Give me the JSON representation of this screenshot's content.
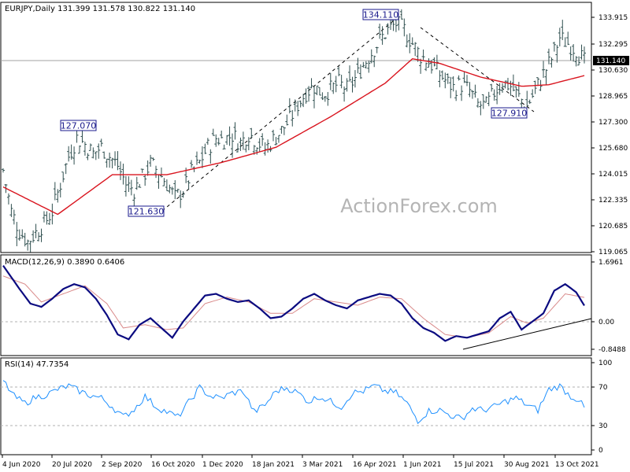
{
  "chart_data": [
    {
      "type": "candlestick",
      "title": "EURJPY,Daily  131.399 131.578 130.822 131.140",
      "watermark": "ActionForex.com",
      "x_tick_labels": [
        "4 Jun 2020",
        "20 Jul 2020",
        "2 Sep 2020",
        "16 Oct 2020",
        "1 Dec 2020",
        "18 Jan 2021",
        "3 Mar 2021",
        "16 Apr 2021",
        "1 Jun 2021",
        "15 Jul 2021",
        "30 Aug 2021",
        "13 Oct 2021"
      ],
      "y_tick_labels": [
        "133.915",
        "132.295",
        "130.630",
        "128.965",
        "127.300",
        "125.680",
        "124.015",
        "122.335",
        "120.685",
        "119.065"
      ],
      "ylim": [
        118.9,
        135.3
      ],
      "last_price": "131.140",
      "annotations": [
        {
          "label": "127.070",
          "value": 127.07
        },
        {
          "label": "121.630",
          "value": 121.63
        },
        {
          "label": "134.110",
          "value": 134.11
        },
        {
          "label": "127.910",
          "value": 127.91
        }
      ],
      "price_path": [
        {
          "x": 0,
          "y": 124.3
        },
        {
          "x": 3,
          "y": 121.6
        },
        {
          "x": 6,
          "y": 120.3
        },
        {
          "x": 9,
          "y": 119.6
        },
        {
          "x": 12,
          "y": 120.2
        },
        {
          "x": 15,
          "y": 120.8
        },
        {
          "x": 18,
          "y": 121.6
        },
        {
          "x": 21,
          "y": 123.4
        },
        {
          "x": 24,
          "y": 125.2
        },
        {
          "x": 27,
          "y": 126.4
        },
        {
          "x": 30,
          "y": 126.0
        },
        {
          "x": 33,
          "y": 125.4
        },
        {
          "x": 36,
          "y": 125.8
        },
        {
          "x": 39,
          "y": 125.2
        },
        {
          "x": 42,
          "y": 124.6
        },
        {
          "x": 45,
          "y": 123.4
        },
        {
          "x": 48,
          "y": 123.0
        },
        {
          "x": 51,
          "y": 123.8
        },
        {
          "x": 54,
          "y": 124.7
        },
        {
          "x": 57,
          "y": 124.2
        },
        {
          "x": 60,
          "y": 123.4
        },
        {
          "x": 63,
          "y": 122.5
        },
        {
          "x": 66,
          "y": 123.0
        },
        {
          "x": 69,
          "y": 124.1
        },
        {
          "x": 72,
          "y": 124.8
        },
        {
          "x": 75,
          "y": 125.8
        },
        {
          "x": 78,
          "y": 126.4
        },
        {
          "x": 81,
          "y": 126.3
        },
        {
          "x": 84,
          "y": 126.6
        },
        {
          "x": 87,
          "y": 126.1
        },
        {
          "x": 90,
          "y": 126.7
        },
        {
          "x": 93,
          "y": 126.2
        },
        {
          "x": 96,
          "y": 125.7
        },
        {
          "x": 99,
          "y": 126.3
        },
        {
          "x": 102,
          "y": 126.9
        },
        {
          "x": 105,
          "y": 127.6
        },
        {
          "x": 108,
          "y": 128.6
        },
        {
          "x": 111,
          "y": 129.4
        },
        {
          "x": 114,
          "y": 129.8
        },
        {
          "x": 117,
          "y": 129.3
        },
        {
          "x": 120,
          "y": 129.6
        },
        {
          "x": 123,
          "y": 130.0
        },
        {
          "x": 126,
          "y": 129.6
        },
        {
          "x": 129,
          "y": 130.3
        },
        {
          "x": 132,
          "y": 131.2
        },
        {
          "x": 135,
          "y": 132.0
        },
        {
          "x": 138,
          "y": 132.8
        },
        {
          "x": 141,
          "y": 133.5
        },
        {
          "x": 144,
          "y": 133.9
        },
        {
          "x": 147,
          "y": 133.5
        },
        {
          "x": 150,
          "y": 132.6
        },
        {
          "x": 153,
          "y": 131.8
        },
        {
          "x": 156,
          "y": 131.4
        },
        {
          "x": 159,
          "y": 130.8
        },
        {
          "x": 162,
          "y": 130.2
        },
        {
          "x": 165,
          "y": 129.7
        },
        {
          "x": 168,
          "y": 129.9
        },
        {
          "x": 171,
          "y": 129.5
        },
        {
          "x": 174,
          "y": 128.6
        },
        {
          "x": 177,
          "y": 128.5
        },
        {
          "x": 180,
          "y": 129.4
        },
        {
          "x": 183,
          "y": 130.1
        },
        {
          "x": 186,
          "y": 129.8
        },
        {
          "x": 189,
          "y": 129.1
        },
        {
          "x": 192,
          "y": 128.5
        },
        {
          "x": 195,
          "y": 129.5
        },
        {
          "x": 198,
          "y": 130.6
        },
        {
          "x": 201,
          "y": 131.6
        },
        {
          "x": 204,
          "y": 133.0
        },
        {
          "x": 207,
          "y": 132.6
        },
        {
          "x": 210,
          "y": 132.2
        },
        {
          "x": 213,
          "y": 131.4
        }
      ],
      "series": [
        {
          "name": "price",
          "color": "#2f4f4f"
        },
        {
          "color": "#d9141e",
          "values": [
            {
              "x": 0,
              "y": 123.2
            },
            {
              "x": 20,
              "y": 121.4
            },
            {
              "x": 40,
              "y": 124.0
            },
            {
              "x": 60,
              "y": 124.0
            },
            {
              "x": 80,
              "y": 124.8
            },
            {
              "x": 100,
              "y": 125.8
            },
            {
              "x": 120,
              "y": 127.8
            },
            {
              "x": 140,
              "y": 130.0
            },
            {
              "x": 150,
              "y": 131.6
            },
            {
              "x": 160,
              "y": 131.3
            },
            {
              "x": 175,
              "y": 130.4
            },
            {
              "x": 190,
              "y": 129.8
            },
            {
              "x": 200,
              "y": 129.9
            },
            {
              "x": 213,
              "y": 130.5
            }
          ]
        }
      ]
    },
    {
      "type": "line",
      "title": "MACD(12,26,9) 0.3890 0.6406",
      "y_tick_labels": [
        "1.6961",
        "0.00",
        "-0.8488"
      ],
      "ylim": [
        -1.15,
        1.95
      ],
      "series": [
        {
          "color": "#0b0b80",
          "values": [
            {
              "x": 0,
              "y": 1.62
            },
            {
              "x": 6,
              "y": 0.9
            },
            {
              "x": 10,
              "y": 0.45
            },
            {
              "x": 14,
              "y": 0.35
            },
            {
              "x": 18,
              "y": 0.6
            },
            {
              "x": 22,
              "y": 0.9
            },
            {
              "x": 26,
              "y": 1.05
            },
            {
              "x": 30,
              "y": 0.95
            },
            {
              "x": 34,
              "y": 0.6
            },
            {
              "x": 38,
              "y": 0.1
            },
            {
              "x": 42,
              "y": -0.5
            },
            {
              "x": 46,
              "y": -0.65
            },
            {
              "x": 50,
              "y": -0.2
            },
            {
              "x": 54,
              "y": 0.0
            },
            {
              "x": 58,
              "y": -0.3
            },
            {
              "x": 62,
              "y": -0.6
            },
            {
              "x": 66,
              "y": -0.1
            },
            {
              "x": 70,
              "y": 0.3
            },
            {
              "x": 74,
              "y": 0.7
            },
            {
              "x": 78,
              "y": 0.75
            },
            {
              "x": 82,
              "y": 0.6
            },
            {
              "x": 86,
              "y": 0.5
            },
            {
              "x": 90,
              "y": 0.55
            },
            {
              "x": 94,
              "y": 0.3
            },
            {
              "x": 98,
              "y": 0.0
            },
            {
              "x": 102,
              "y": 0.05
            },
            {
              "x": 106,
              "y": 0.3
            },
            {
              "x": 110,
              "y": 0.6
            },
            {
              "x": 114,
              "y": 0.75
            },
            {
              "x": 118,
              "y": 0.55
            },
            {
              "x": 122,
              "y": 0.4
            },
            {
              "x": 126,
              "y": 0.3
            },
            {
              "x": 130,
              "y": 0.55
            },
            {
              "x": 134,
              "y": 0.65
            },
            {
              "x": 138,
              "y": 0.75
            },
            {
              "x": 142,
              "y": 0.7
            },
            {
              "x": 146,
              "y": 0.45
            },
            {
              "x": 150,
              "y": 0.0
            },
            {
              "x": 154,
              "y": -0.3
            },
            {
              "x": 158,
              "y": -0.45
            },
            {
              "x": 162,
              "y": -0.7
            },
            {
              "x": 166,
              "y": -0.55
            },
            {
              "x": 170,
              "y": -0.6
            },
            {
              "x": 174,
              "y": -0.5
            },
            {
              "x": 178,
              "y": -0.4
            },
            {
              "x": 182,
              "y": 0.0
            },
            {
              "x": 186,
              "y": 0.2
            },
            {
              "x": 190,
              "y": -0.35
            },
            {
              "x": 194,
              "y": -0.1
            },
            {
              "x": 198,
              "y": 0.15
            },
            {
              "x": 202,
              "y": 0.85
            },
            {
              "x": 206,
              "y": 1.05
            },
            {
              "x": 210,
              "y": 0.8
            },
            {
              "x": 213,
              "y": 0.39
            }
          ]
        },
        {
          "color": "#d98a8a",
          "values": [
            {
              "x": 0,
              "y": 1.3
            },
            {
              "x": 8,
              "y": 1.05
            },
            {
              "x": 14,
              "y": 0.5
            },
            {
              "x": 22,
              "y": 0.75
            },
            {
              "x": 30,
              "y": 1.0
            },
            {
              "x": 38,
              "y": 0.45
            },
            {
              "x": 44,
              "y": -0.3
            },
            {
              "x": 52,
              "y": -0.2
            },
            {
              "x": 60,
              "y": -0.35
            },
            {
              "x": 66,
              "y": -0.3
            },
            {
              "x": 74,
              "y": 0.45
            },
            {
              "x": 82,
              "y": 0.65
            },
            {
              "x": 90,
              "y": 0.5
            },
            {
              "x": 98,
              "y": 0.15
            },
            {
              "x": 106,
              "y": 0.15
            },
            {
              "x": 114,
              "y": 0.6
            },
            {
              "x": 122,
              "y": 0.5
            },
            {
              "x": 130,
              "y": 0.4
            },
            {
              "x": 138,
              "y": 0.65
            },
            {
              "x": 146,
              "y": 0.6
            },
            {
              "x": 154,
              "y": 0.0
            },
            {
              "x": 162,
              "y": -0.5
            },
            {
              "x": 170,
              "y": -0.6
            },
            {
              "x": 178,
              "y": -0.45
            },
            {
              "x": 186,
              "y": 0.05
            },
            {
              "x": 192,
              "y": -0.15
            },
            {
              "x": 198,
              "y": 0.0
            },
            {
              "x": 206,
              "y": 0.75
            },
            {
              "x": 213,
              "y": 0.64
            }
          ]
        }
      ]
    },
    {
      "type": "line",
      "title": "RSI(14) 47.7354",
      "y_tick_labels": [
        "100",
        "70",
        "30",
        "0"
      ],
      "ylim": [
        0,
        100
      ],
      "series": [
        {
          "color": "#1e90ff",
          "values": [
            {
              "x": 0,
              "y": 80
            },
            {
              "x": 4,
              "y": 62
            },
            {
              "x": 8,
              "y": 54
            },
            {
              "x": 12,
              "y": 61
            },
            {
              "x": 16,
              "y": 64
            },
            {
              "x": 20,
              "y": 70
            },
            {
              "x": 24,
              "y": 74
            },
            {
              "x": 28,
              "y": 68
            },
            {
              "x": 32,
              "y": 63
            },
            {
              "x": 36,
              "y": 60
            },
            {
              "x": 40,
              "y": 50
            },
            {
              "x": 44,
              "y": 38
            },
            {
              "x": 48,
              "y": 47
            },
            {
              "x": 52,
              "y": 62
            },
            {
              "x": 56,
              "y": 50
            },
            {
              "x": 60,
              "y": 44
            },
            {
              "x": 64,
              "y": 38
            },
            {
              "x": 68,
              "y": 55
            },
            {
              "x": 72,
              "y": 72
            },
            {
              "x": 76,
              "y": 62
            },
            {
              "x": 80,
              "y": 60
            },
            {
              "x": 84,
              "y": 66
            },
            {
              "x": 88,
              "y": 68
            },
            {
              "x": 92,
              "y": 44
            },
            {
              "x": 96,
              "y": 52
            },
            {
              "x": 100,
              "y": 68
            },
            {
              "x": 104,
              "y": 72
            },
            {
              "x": 108,
              "y": 66
            },
            {
              "x": 112,
              "y": 56
            },
            {
              "x": 116,
              "y": 62
            },
            {
              "x": 120,
              "y": 56
            },
            {
              "x": 124,
              "y": 50
            },
            {
              "x": 128,
              "y": 66
            },
            {
              "x": 132,
              "y": 68
            },
            {
              "x": 136,
              "y": 74
            },
            {
              "x": 140,
              "y": 68
            },
            {
              "x": 144,
              "y": 66
            },
            {
              "x": 148,
              "y": 54
            },
            {
              "x": 152,
              "y": 34
            },
            {
              "x": 156,
              "y": 45
            },
            {
              "x": 160,
              "y": 46
            },
            {
              "x": 164,
              "y": 40
            },
            {
              "x": 168,
              "y": 36
            },
            {
              "x": 172,
              "y": 48
            },
            {
              "x": 176,
              "y": 46
            },
            {
              "x": 180,
              "y": 50
            },
            {
              "x": 184,
              "y": 56
            },
            {
              "x": 188,
              "y": 60
            },
            {
              "x": 192,
              "y": 52
            },
            {
              "x": 196,
              "y": 46
            },
            {
              "x": 200,
              "y": 70
            },
            {
              "x": 204,
              "y": 74
            },
            {
              "x": 208,
              "y": 62
            },
            {
              "x": 211,
              "y": 58
            },
            {
              "x": 213,
              "y": 48
            }
          ]
        }
      ]
    }
  ]
}
